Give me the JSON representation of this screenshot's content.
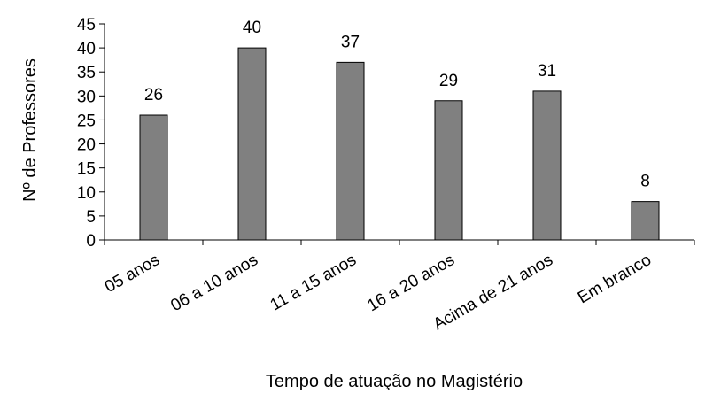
{
  "chart_data": {
    "type": "bar",
    "categories": [
      "05 anos",
      "06 a 10 anos",
      "11 a 15 anos",
      "16 a 20 anos",
      "Acima de 21 anos",
      "Em branco"
    ],
    "values": [
      26,
      40,
      37,
      29,
      31,
      8
    ],
    "data_labels": [
      "26",
      "40",
      "37",
      "29",
      "31",
      "8"
    ],
    "title": "",
    "xlabel": "Tempo de atuação no Magistério",
    "ylabel": "Nº de Professores",
    "ylim": [
      0,
      45
    ],
    "yticks": [
      0,
      5,
      10,
      15,
      20,
      25,
      30,
      35,
      40,
      45
    ],
    "grid": false,
    "bar_color": "#808080"
  }
}
